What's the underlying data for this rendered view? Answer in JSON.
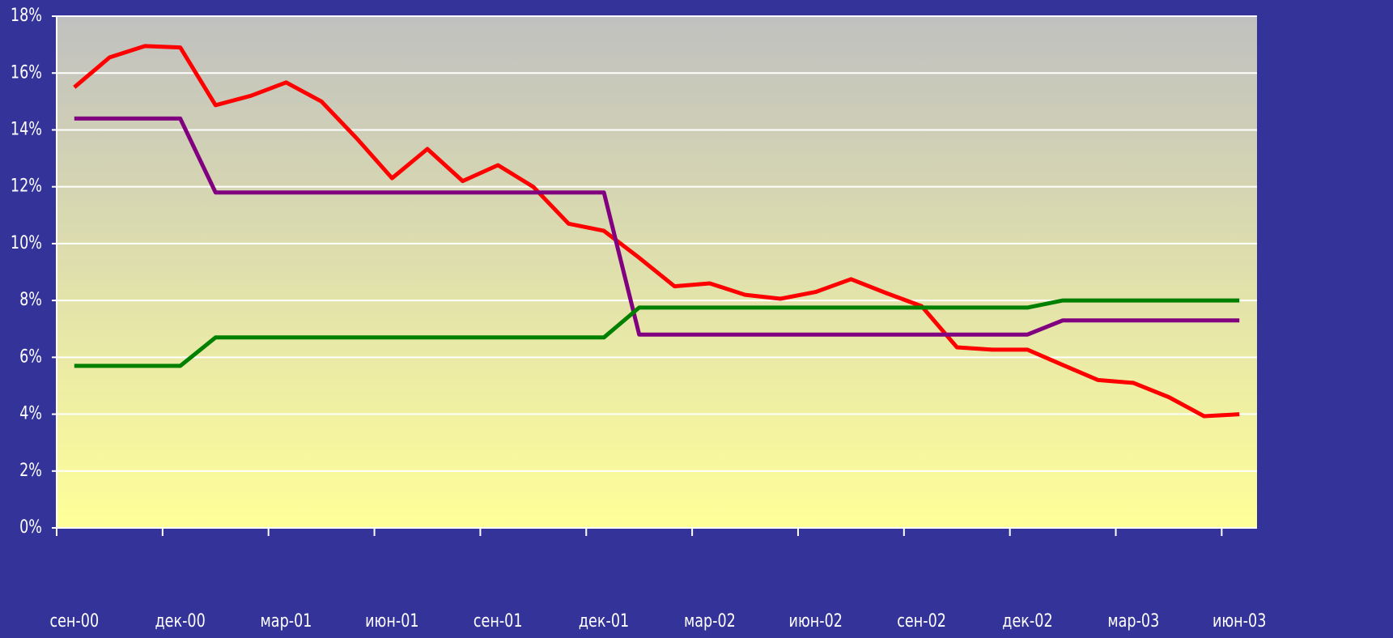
{
  "chart_data": {
    "type": "line",
    "categories": [
      "сен-00",
      null,
      null,
      "дек-00",
      null,
      null,
      "мар-01",
      null,
      null,
      "июн-01",
      null,
      null,
      "сен-01",
      null,
      null,
      "дек-01",
      null,
      null,
      "мар-02",
      null,
      null,
      "июн-02",
      null,
      null,
      "сен-02",
      null,
      null,
      "дек-02",
      null,
      null,
      "мар-03",
      null,
      null,
      "июн-03"
    ],
    "series": [
      {
        "color": "#ff0000",
        "values": [
          15.5,
          16.55,
          16.95,
          16.9,
          14.87,
          15.2,
          15.67,
          15.0,
          13.7,
          12.3,
          13.33,
          12.2,
          12.76,
          12.0,
          10.7,
          10.45,
          9.5,
          8.5,
          8.6,
          8.2,
          8.06,
          8.3,
          8.75,
          8.26,
          7.8,
          6.35,
          6.27,
          6.27,
          5.73,
          5.2,
          5.1,
          4.6,
          3.93,
          4.0
        ]
      },
      {
        "color": "#800080",
        "values": [
          14.4,
          14.4,
          14.4,
          14.4,
          11.8,
          11.8,
          11.8,
          11.8,
          11.8,
          11.8,
          11.8,
          11.8,
          11.8,
          11.8,
          11.8,
          11.8,
          6.8,
          6.8,
          6.8,
          6.8,
          6.8,
          6.8,
          6.8,
          6.8,
          6.8,
          6.8,
          6.8,
          6.8,
          7.3,
          7.3,
          7.3,
          7.3,
          7.3,
          7.3
        ]
      },
      {
        "color": "#008000",
        "values": [
          5.7,
          5.7,
          5.7,
          5.7,
          6.7,
          6.7,
          6.7,
          6.7,
          6.7,
          6.7,
          6.7,
          6.7,
          6.7,
          6.7,
          6.7,
          6.7,
          7.75,
          7.75,
          7.75,
          7.75,
          7.75,
          7.75,
          7.75,
          7.75,
          7.75,
          7.75,
          7.75,
          7.75,
          8.0,
          8.0,
          8.0,
          8.0,
          8.0,
          8.0
        ]
      }
    ],
    "ylim": [
      0,
      18
    ],
    "yticks": [
      {
        "value": 0,
        "label": "0%"
      },
      {
        "value": 2,
        "label": "2%"
      },
      {
        "value": 4,
        "label": "4%"
      },
      {
        "value": 6,
        "label": "6%"
      },
      {
        "value": 8,
        "label": "8%"
      },
      {
        "value": 10,
        "label": "10%"
      },
      {
        "value": 12,
        "label": "12%"
      },
      {
        "value": 14,
        "label": "14%"
      },
      {
        "value": 16,
        "label": "16%"
      },
      {
        "value": 18,
        "label": "18%"
      }
    ],
    "grid": true
  }
}
